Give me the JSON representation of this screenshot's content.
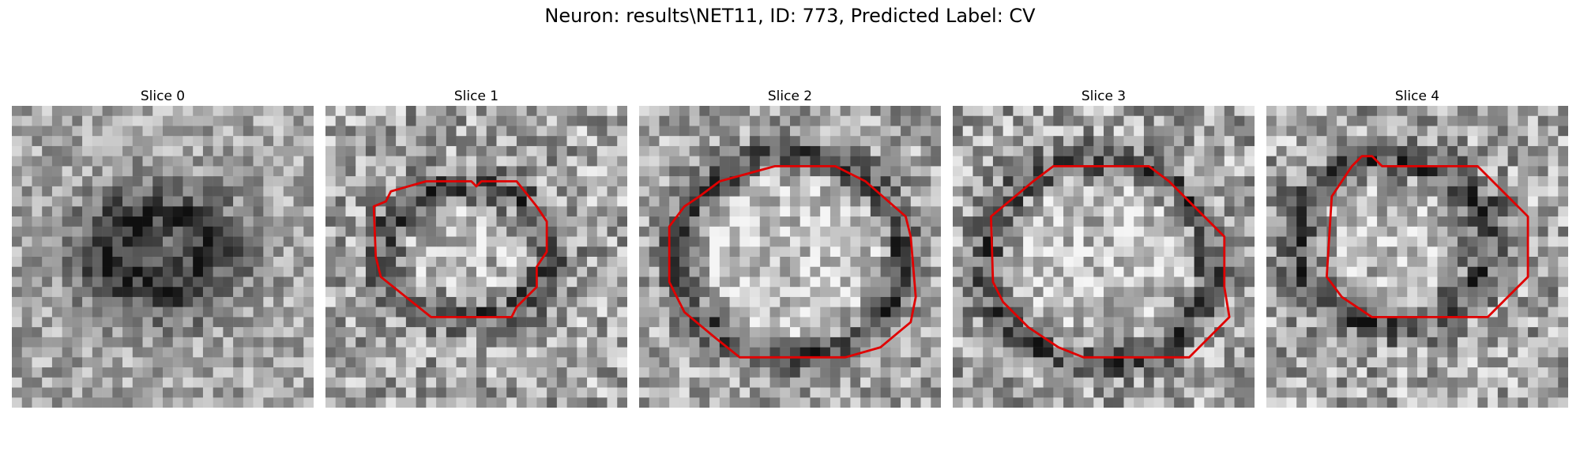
{
  "figure": {
    "title": "Neuron: results\\NET11, ID: 773, Predicted Label: CV"
  },
  "colors": {
    "contour": "#e00000",
    "background": "#ffffff"
  },
  "slices": [
    {
      "label": "Slice 0"
    },
    {
      "label": "Slice 1"
    },
    {
      "label": "Slice 2"
    },
    {
      "label": "Slice 3"
    },
    {
      "label": "Slice 4"
    }
  ]
}
